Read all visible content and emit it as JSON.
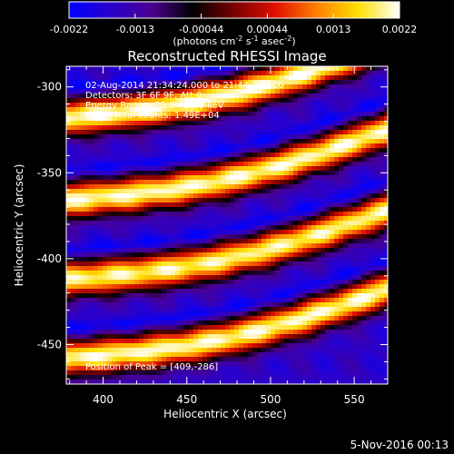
{
  "colorbar": {
    "ticks": [
      "-0.0022",
      "-0.0013",
      "-0.00044",
      "0.00044",
      "0.0013",
      "0.0022"
    ],
    "unit_main": "(photons cm",
    "unit_exp1": "-2",
    "unit_mid": " s",
    "unit_exp2": "-1",
    "unit_end": " asec",
    "unit_exp3": "-2",
    "unit_close": ")",
    "colors": [
      "#0000ff",
      "#2a00cc",
      "#4a0090",
      "#000000",
      "#7a0000",
      "#e01000",
      "#ff8000",
      "#ffe000",
      "#ffffff"
    ],
    "range": [
      -0.0022,
      0.0022
    ]
  },
  "chart_data": {
    "type": "heatmap",
    "title": "Reconstructed RHESSI Image",
    "xlabel": "Heliocentric X (arcsec)",
    "ylabel": "Heliocentric Y (arcsec)",
    "xlim": [
      378,
      570
    ],
    "ylim": [
      -473,
      -288
    ],
    "xticks": [
      400,
      450,
      500,
      550
    ],
    "yticks": [
      -300,
      -350,
      -400,
      -450
    ],
    "info_lines": [
      "02-Aug-2014 21:34:24.000 to 21:44:24.000",
      "Detectors: 3F 6F 9F, Att 0",
      "Energy Range: 25.0 - 50.0 keV",
      "Clean     Total counts: 1.49E+04"
    ],
    "peak_label": "Position of Peak = [409,-286]",
    "peak": [
      409,
      -286
    ],
    "ridges": [
      {
        "y_left": -318,
        "y_right": -275,
        "amplitude": 0.0022
      },
      {
        "y_left": -366,
        "y_right": -325,
        "amplitude": 0.0021
      },
      {
        "y_left": -412,
        "y_right": -372,
        "amplitude": 0.002
      },
      {
        "y_left": -458,
        "y_right": -418,
        "amplitude": 0.0021
      }
    ]
  },
  "footer": {
    "timestamp": "5-Nov-2016 00:13"
  }
}
